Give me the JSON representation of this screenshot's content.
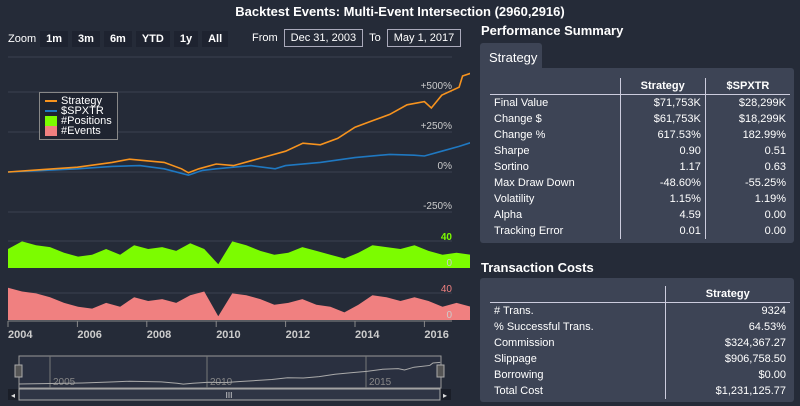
{
  "title": "Backtest Events: Multi-Event Intersection (2960,2916)",
  "zoom": {
    "label": "Zoom",
    "buttons": [
      "1m",
      "3m",
      "6m",
      "YTD",
      "1y",
      "All"
    ]
  },
  "range": {
    "from_label": "From",
    "from": "Dec 31, 2003",
    "to_label": "To",
    "to": "May 1, 2017"
  },
  "colors": {
    "strategy": "#f7931e",
    "spx": "#1f78c1",
    "positions": "#7cfc00",
    "events": "#f08080"
  },
  "chart_data": {
    "type": "line",
    "title": "Backtest Events: Multi-Event Intersection (2960,2916)",
    "legend": [
      "Strategy",
      "$SPXTR",
      "#Positions",
      "#Events"
    ],
    "legend_placement": "top-left",
    "y_ticks": [
      "+500%",
      "+250%",
      "0%",
      "-250%"
    ],
    "y_tick_values": [
      500,
      250,
      0,
      -250
    ],
    "ylim": [
      -250,
      650
    ],
    "x_ticks": [
      "2004",
      "2006",
      "2008",
      "2010",
      "2012",
      "2014",
      "2016"
    ],
    "xlim": [
      2004,
      2017.33
    ],
    "series": [
      {
        "name": "Strategy",
        "x": [
          2004,
          2005,
          2006,
          2007,
          2007.5,
          2008.5,
          2009,
          2009.2,
          2009.5,
          2010,
          2010.5,
          2011,
          2011.5,
          2012,
          2012.5,
          2013,
          2013.5,
          2014,
          2014.5,
          2015,
          2015.5,
          2016,
          2016.2,
          2016.5,
          2017,
          2017.1,
          2017.33
        ],
        "y": [
          0,
          15,
          30,
          60,
          80,
          60,
          20,
          -5,
          20,
          50,
          40,
          70,
          100,
          130,
          180,
          170,
          210,
          280,
          320,
          360,
          420,
          440,
          400,
          480,
          530,
          600,
          617
        ]
      },
      {
        "name": "$SPXTR",
        "x": [
          2004,
          2005,
          2006,
          2007,
          2007.8,
          2008.5,
          2009.2,
          2009.6,
          2010,
          2011,
          2011.7,
          2012,
          2013,
          2014,
          2015,
          2015.7,
          2016,
          2016.5,
          2017,
          2017.33
        ],
        "y": [
          0,
          10,
          20,
          35,
          40,
          20,
          -20,
          10,
          20,
          40,
          20,
          40,
          60,
          90,
          110,
          105,
          100,
          130,
          160,
          183
        ]
      }
    ],
    "positions": {
      "label": "40",
      "zero": "0",
      "max": 40,
      "values": [
        20,
        28,
        24,
        22,
        16,
        12,
        14,
        20,
        14,
        24,
        20,
        22,
        18,
        26,
        20,
        4,
        28,
        24,
        18,
        14,
        16,
        22,
        18,
        14,
        10,
        16,
        24,
        22,
        20,
        24,
        18,
        14,
        16,
        14
      ]
    },
    "events": {
      "label": "40",
      "zero": "0",
      "max": 40,
      "values": [
        34,
        30,
        28,
        24,
        18,
        14,
        12,
        18,
        14,
        24,
        20,
        22,
        18,
        26,
        30,
        4,
        28,
        26,
        22,
        16,
        18,
        22,
        16,
        14,
        8,
        16,
        26,
        24,
        20,
        24,
        20,
        14,
        18,
        14
      ]
    },
    "navigator": {
      "labels": [
        "2005",
        "2010",
        "2015"
      ]
    }
  },
  "perf": {
    "heading": "Performance Summary",
    "tab": "Strategy",
    "cols": [
      "Strategy",
      "$SPXTR"
    ],
    "rows": [
      [
        "Final Value",
        "$71,753K",
        "$28,299K"
      ],
      [
        "Change $",
        "$61,753K",
        "$18,299K"
      ],
      [
        "Change %",
        "617.53%",
        "182.99%"
      ],
      [
        "Sharpe",
        "0.90",
        "0.51"
      ],
      [
        "Sortino",
        "1.17",
        "0.63"
      ],
      [
        "Max Draw Down",
        "-48.60%",
        "-55.25%"
      ],
      [
        "Volatility",
        "1.15%",
        "1.19%"
      ],
      [
        "Alpha",
        "4.59",
        "0.00"
      ],
      [
        "Tracking Error",
        "0.01",
        "0.00"
      ]
    ]
  },
  "costs": {
    "heading": "Transaction Costs",
    "cols": [
      "Strategy"
    ],
    "rows": [
      [
        "# Trans.",
        "9324"
      ],
      [
        "% Successful Trans.",
        "64.53%"
      ],
      [
        "Commission",
        "$324,367.27"
      ],
      [
        "Slippage",
        "$906,758.50"
      ],
      [
        "Borrowing",
        "$0.00"
      ],
      [
        "Total Cost",
        "$1,231,125.77"
      ]
    ]
  },
  "navigator": {
    "scroll_grip": "III"
  }
}
